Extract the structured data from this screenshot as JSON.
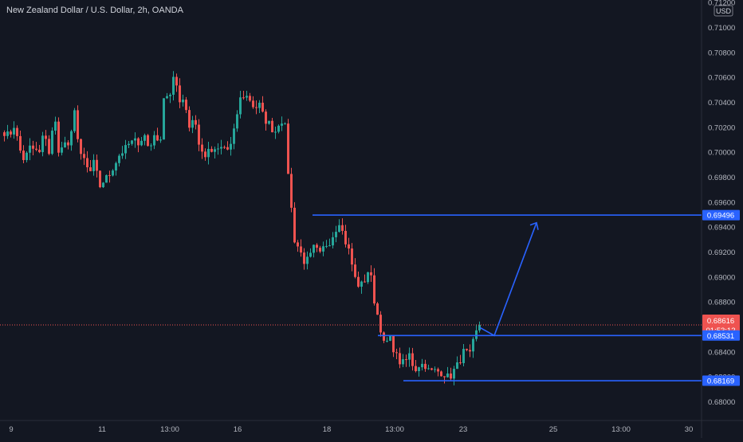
{
  "header": {
    "title": "New Zealand Dollar / U.S. Dollar, 2h, OANDA"
  },
  "chart_data": {
    "type": "candlestick",
    "symbol": "New Zealand Dollar / U.S. Dollar",
    "interval": "2h",
    "source": "OANDA",
    "currency": "USD",
    "y_ticks": [
      "0.71200",
      "0.71000",
      "0.70800",
      "0.70600",
      "0.70400",
      "0.70200",
      "0.70000",
      "0.69800",
      "0.69600",
      "0.69400",
      "0.69200",
      "0.69000",
      "0.68800",
      "0.68600",
      "0.68400",
      "0.68200",
      "0.68000"
    ],
    "ylim": [
      0.6785,
      0.7122
    ],
    "x_ticks": [
      "9",
      "11",
      "13:00",
      "16",
      "18",
      "13:00",
      "23",
      "25",
      "13:00",
      "30"
    ],
    "current_price": {
      "value": 0.68616,
      "label": "0.68616",
      "countdown": "01:53:12"
    },
    "levels": [
      {
        "value": 0.69496,
        "label": "0.69496"
      },
      {
        "value": 0.68531,
        "label": "0.68531"
      },
      {
        "value": 0.68169,
        "label": "0.68169"
      }
    ],
    "annotation": {
      "type": "arrow",
      "from_price": 0.68531,
      "to_price": 0.69435
    },
    "anchors": [
      [
        0.7016,
        0.7013,
        0.7022,
        0.7003
      ],
      [
        0.6993,
        0.7004,
        0.7002,
        0.6999
      ],
      [
        0.7018,
        0.6998,
        0.703,
        0.6997
      ],
      [
        0.7009,
        0.7001,
        0.7037,
        0.6997
      ],
      [
        0.6994,
        0.6982,
        0.6993,
        0.6972
      ],
      [
        0.6978,
        0.6982,
        0.699,
        0.6998
      ],
      [
        0.7002,
        0.7007,
        0.7009,
        0.7008
      ],
      [
        0.7014,
        0.7001,
        0.7016,
        0.7001
      ],
      [
        0.705,
        0.7042,
        0.7062,
        0.7042
      ],
      [
        0.7043,
        0.702,
        0.703,
        0.7003
      ],
      [
        0.6997,
        0.7001,
        0.7,
        0.7003
      ],
      [
        0.7004,
        0.7001,
        0.7018,
        0.7042
      ],
      [
        0.7046,
        0.7043,
        0.7035,
        0.7038
      ],
      [
        0.7026,
        0.7023,
        0.7015,
        0.7025
      ],
      [
        0.7026,
        0.697,
        0.693,
        0.6922
      ],
      [
        0.6912,
        0.6915,
        0.6925,
        0.6917
      ],
      [
        0.6925,
        0.6928,
        0.6936,
        0.6945
      ],
      [
        0.693,
        0.692,
        0.69,
        0.6892
      ],
      [
        0.6897,
        0.6908,
        0.688,
        0.6863
      ],
      [
        0.6844,
        0.6852,
        0.684,
        0.6832
      ],
      [
        0.6831,
        0.6838,
        0.6825,
        0.683
      ],
      [
        0.683,
        0.6824,
        0.6825,
        0.6824
      ],
      [
        0.6822,
        0.6819,
        0.6826,
        0.6832
      ],
      [
        0.6842,
        0.6836,
        0.6852,
        0.6862
      ]
    ]
  }
}
